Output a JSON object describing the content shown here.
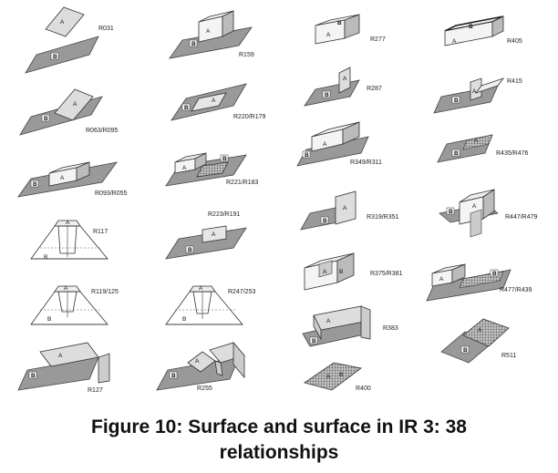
{
  "letters": {
    "a": "A",
    "b": "B"
  },
  "relations": [
    "R031",
    "R159",
    "R277",
    "R405",
    "R063/R095",
    "R220/R179",
    "R287",
    "R415",
    "R093/R055",
    "R221/R183",
    "R349/R311",
    "R435/R476",
    "R117",
    "R223/R191",
    "R319/R351",
    "R447/R479",
    "R119/125",
    "R247/253",
    "R375/R381",
    "R477/R439",
    "R127",
    "R255",
    "R383",
    "R511",
    "R400"
  ],
  "caption": {
    "line1": "Figure 10: Surface and surface in IR 3: 38",
    "line2": "relationships"
  }
}
